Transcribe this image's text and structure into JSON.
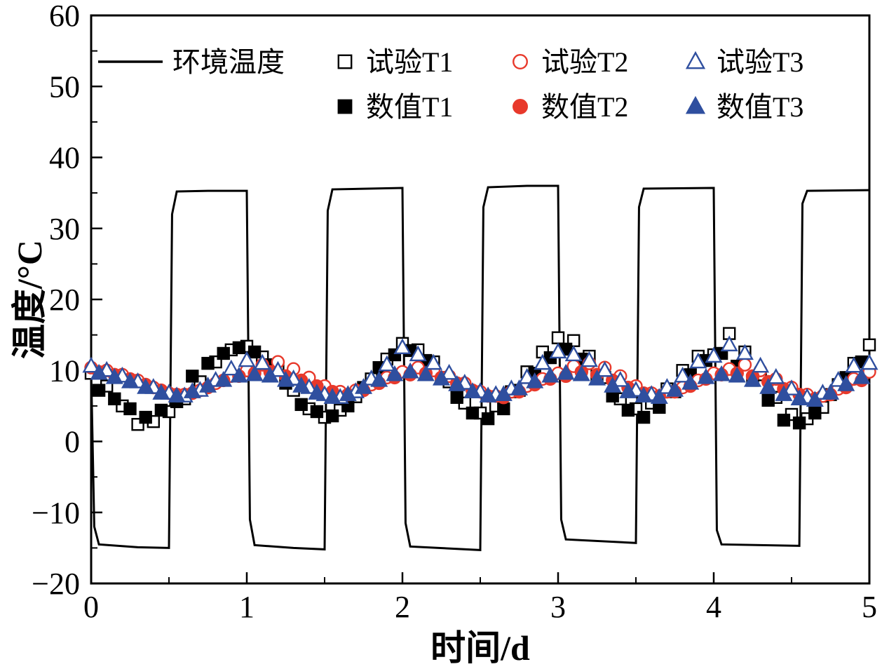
{
  "chart_data": {
    "type": "line",
    "title": "",
    "xlabel": "时间/d",
    "ylabel": "温度/°C",
    "xlim": [
      0,
      5
    ],
    "ylim": [
      -20,
      60
    ],
    "xticks": [
      0,
      1,
      2,
      3,
      4,
      5
    ],
    "yticks": [
      -20,
      -10,
      0,
      10,
      20,
      30,
      40,
      50,
      60
    ],
    "x_minor_ticks": [
      0.5,
      1.5,
      2.5,
      3.5,
      4.5
    ],
    "y_minor_ticks": [
      -15,
      -5,
      5,
      15,
      25,
      35,
      45,
      55
    ],
    "grid": false,
    "legend_position": "top-inside",
    "legend_rows": [
      [
        "env",
        "exp-t1",
        "exp-t2",
        "exp-t3"
      ],
      [
        "num-t1",
        "num-t2",
        "num-t3"
      ]
    ],
    "series": [
      {
        "id": "env",
        "name": "环境温度",
        "mode": "line",
        "marker": "none",
        "color": "#000000",
        "points": [
          [
            0,
            10.0
          ],
          [
            0.02,
            -12.0
          ],
          [
            0.05,
            -14.5
          ],
          [
            0.3,
            -14.9
          ],
          [
            0.5,
            -15.0
          ],
          [
            0.52,
            32.0
          ],
          [
            0.55,
            35.2
          ],
          [
            0.75,
            35.3
          ],
          [
            1.0,
            35.3
          ],
          [
            1.02,
            -11.0
          ],
          [
            1.05,
            -14.6
          ],
          [
            1.3,
            -15.0
          ],
          [
            1.5,
            -15.2
          ],
          [
            1.52,
            32.5
          ],
          [
            1.55,
            35.5
          ],
          [
            2.0,
            35.7
          ],
          [
            2.02,
            -11.5
          ],
          [
            2.05,
            -14.8
          ],
          [
            2.5,
            -15.3
          ],
          [
            2.52,
            33.0
          ],
          [
            2.55,
            35.8
          ],
          [
            2.8,
            36.0
          ],
          [
            3.0,
            36.0
          ],
          [
            3.02,
            -11.0
          ],
          [
            3.05,
            -13.8
          ],
          [
            3.5,
            -14.3
          ],
          [
            3.52,
            33.0
          ],
          [
            3.55,
            35.6
          ],
          [
            4.0,
            35.7
          ],
          [
            4.02,
            -12.5
          ],
          [
            4.05,
            -14.5
          ],
          [
            4.55,
            -14.7
          ],
          [
            4.57,
            33.5
          ],
          [
            4.6,
            35.3
          ],
          [
            5.0,
            35.4
          ]
        ]
      },
      {
        "id": "exp-t1",
        "name": "试验T1",
        "mode": "markers",
        "marker": "square",
        "fill": "open",
        "color": "#000000",
        "x0": 0,
        "dx": 0.1,
        "y": [
          9.6,
          7.8,
          5.0,
          2.4,
          2.8,
          4.2,
          6.0,
          8.4,
          11.2,
          12.9,
          13.4,
          11.9,
          10.2,
          7.2,
          4.6,
          3.4,
          4.4,
          6.3,
          8.8,
          11.6,
          13.8,
          12.9,
          11.2,
          8.4,
          5.4,
          4.0,
          5.0,
          7.0,
          9.8,
          12.6,
          14.6,
          14.2,
          12.0,
          9.0,
          6.0,
          4.6,
          5.4,
          7.4,
          10.0,
          12.0,
          12.2,
          15.2,
          12.6,
          9.4,
          6.2,
          3.8,
          3.2,
          4.8,
          8.0,
          11.0,
          13.6
        ]
      },
      {
        "id": "num-t1",
        "name": "数值T1",
        "mode": "markers",
        "marker": "square",
        "fill": "solid",
        "color": "#000000",
        "x0": 0.05,
        "dx": 0.1,
        "y": [
          7.2,
          6.0,
          4.6,
          3.4,
          4.4,
          5.6,
          9.2,
          11.0,
          12.4,
          13.2,
          12.6,
          10.8,
          8.2,
          5.2,
          4.2,
          3.6,
          5.0,
          7.6,
          10.4,
          12.2,
          12.8,
          11.4,
          9.0,
          6.2,
          4.0,
          3.2,
          4.6,
          7.2,
          9.6,
          11.8,
          13.0,
          11.6,
          9.2,
          6.4,
          4.4,
          3.4,
          4.8,
          7.0,
          9.4,
          11.4,
          12.4,
          10.6,
          8.6,
          5.8,
          3.0,
          2.6,
          4.0,
          6.6,
          9.0,
          11.2
        ]
      },
      {
        "id": "exp-t2",
        "name": "试验T2",
        "mode": "markers",
        "marker": "circle",
        "fill": "open",
        "color": "#e8392b",
        "x0": 0,
        "dx": 0.1,
        "y": [
          10.4,
          10.0,
          9.4,
          8.6,
          7.6,
          6.8,
          6.6,
          7.2,
          8.2,
          9.2,
          10.0,
          10.8,
          11.2,
          10.2,
          9.0,
          7.8,
          7.0,
          7.2,
          8.0,
          9.0,
          9.8,
          10.4,
          10.0,
          9.2,
          8.2,
          7.0,
          6.4,
          7.0,
          7.8,
          8.8,
          9.6,
          10.6,
          11.0,
          10.4,
          9.2,
          7.8,
          6.8,
          7.0,
          7.6,
          8.6,
          9.6,
          10.2,
          10.8,
          10.0,
          8.8,
          7.6,
          6.6,
          6.4,
          7.4,
          8.8,
          9.8
        ]
      },
      {
        "id": "num-t2",
        "name": "数值T2",
        "mode": "markers",
        "marker": "circle",
        "fill": "solid",
        "color": "#e8392b",
        "x0": 0.05,
        "dx": 0.1,
        "y": [
          9.8,
          9.4,
          8.8,
          8.0,
          7.2,
          6.6,
          6.8,
          7.6,
          8.6,
          9.2,
          9.6,
          9.8,
          9.2,
          8.6,
          7.8,
          7.0,
          6.6,
          7.2,
          8.2,
          9.0,
          9.4,
          9.6,
          9.0,
          8.2,
          7.2,
          6.4,
          6.2,
          7.0,
          8.0,
          8.8,
          9.2,
          9.8,
          9.4,
          8.6,
          7.6,
          6.8,
          6.4,
          7.0,
          7.8,
          8.8,
          9.4,
          9.6,
          9.2,
          8.4,
          7.4,
          6.6,
          6.0,
          6.6,
          7.6,
          8.6
        ]
      },
      {
        "id": "exp-t3",
        "name": "试验T3",
        "mode": "markers",
        "marker": "triangle",
        "fill": "open",
        "color": "#2f4f9f",
        "x0": 0,
        "dx": 0.1,
        "y": [
          10.6,
          10.0,
          9.2,
          8.4,
          7.6,
          6.8,
          6.4,
          7.2,
          8.6,
          10.2,
          11.4,
          11.0,
          10.0,
          8.8,
          7.6,
          6.6,
          6.2,
          7.0,
          8.8,
          10.8,
          13.2,
          12.2,
          11.0,
          9.6,
          8.2,
          7.0,
          6.6,
          7.4,
          9.0,
          11.0,
          12.6,
          12.2,
          11.4,
          10.0,
          8.6,
          7.2,
          6.6,
          7.6,
          9.2,
          11.2,
          12.0,
          13.6,
          12.4,
          10.6,
          9.0,
          7.4,
          6.2,
          6.8,
          8.6,
          10.6,
          11.0
        ]
      },
      {
        "id": "num-t3",
        "name": "数值T3",
        "mode": "markers",
        "marker": "triangle",
        "fill": "solid",
        "color": "#2f4f9f",
        "x0": 0.05,
        "dx": 0.1,
        "y": [
          9.6,
          9.0,
          8.4,
          7.6,
          6.8,
          6.4,
          7.0,
          7.8,
          8.6,
          9.2,
          9.4,
          9.2,
          8.6,
          7.8,
          6.8,
          6.2,
          6.6,
          7.6,
          8.6,
          9.4,
          9.8,
          9.4,
          8.8,
          8.0,
          7.0,
          6.4,
          6.6,
          7.4,
          8.4,
          9.2,
          9.6,
          9.4,
          8.8,
          7.8,
          7.0,
          6.4,
          6.2,
          7.2,
          8.2,
          9.0,
          9.4,
          9.2,
          8.6,
          7.6,
          6.6,
          6.0,
          5.8,
          6.8,
          8.0,
          9.0
        ]
      }
    ],
    "colors": {
      "black": "#000000",
      "red": "#e8392b",
      "blue": "#2f4f9f",
      "background": "#ffffff"
    }
  }
}
